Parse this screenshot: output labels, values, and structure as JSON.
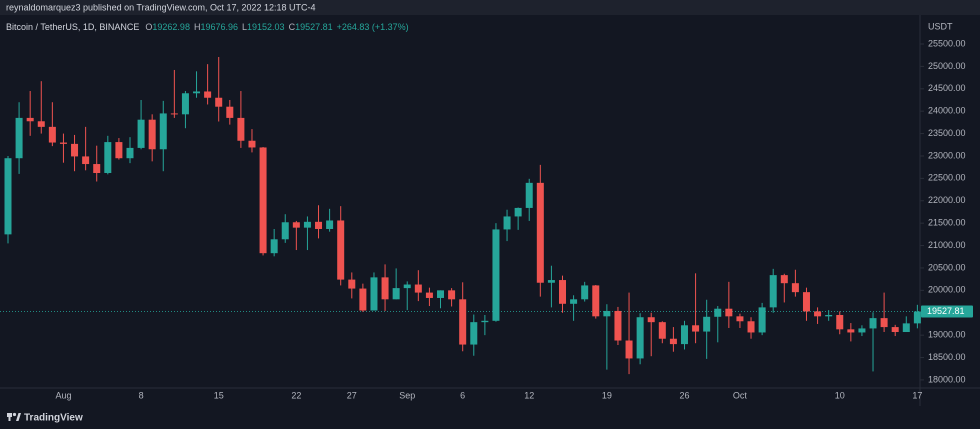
{
  "chart_data": {
    "type": "candlestick",
    "published": "reynaldomarquez3 published on TradingView.com, Oct 17, 2022 12:18 UTC-4",
    "subtitle": "Bitcoin / TetherUS, 1D, BINANCE",
    "ohlc_legend": [
      {
        "label": "O",
        "value": "19262.98"
      },
      {
        "label": "H",
        "value": "19676.96"
      },
      {
        "label": "L",
        "value": "19152.03"
      },
      {
        "label": "C",
        "value": "19527.81"
      }
    ],
    "change": "+264.83 (+1.37%)",
    "y_axis_unit": "USDT",
    "brand": "TradingView",
    "up_color": "#26a69a",
    "down_color": "#ef5350",
    "last_price": 19527.81,
    "categories": [
      null,
      null,
      null,
      null,
      null,
      "Aug",
      null,
      null,
      null,
      null,
      null,
      null,
      "8",
      null,
      null,
      null,
      null,
      null,
      null,
      "15",
      null,
      null,
      null,
      null,
      null,
      null,
      "22",
      null,
      null,
      null,
      null,
      "27",
      null,
      null,
      null,
      null,
      "Sep",
      null,
      null,
      null,
      null,
      "6",
      null,
      null,
      null,
      null,
      null,
      "12",
      null,
      null,
      null,
      null,
      null,
      null,
      "19",
      null,
      null,
      null,
      null,
      null,
      null,
      "26",
      null,
      null,
      null,
      null,
      "Oct",
      null,
      null,
      null,
      null,
      null,
      null,
      null,
      null,
      "10",
      null,
      null,
      null,
      null,
      null,
      null,
      "17"
    ],
    "open": [
      21250,
      22950,
      23850,
      23775,
      23650,
      23300,
      23270,
      22990,
      22820,
      22620,
      23310,
      22950,
      23180,
      23810,
      23150,
      23950,
      23930,
      24400,
      24440,
      24300,
      24100,
      23850,
      23340,
      23190,
      20830,
      21140,
      21520,
      21400,
      21530,
      21370,
      21560,
      20240,
      20040,
      19550,
      20290,
      19800,
      20050,
      20130,
      19950,
      19830,
      20000,
      19800,
      18790,
      19290,
      19320,
      21360,
      21650,
      21840,
      22400,
      20170,
      20230,
      19700,
      19800,
      20110,
      19420,
      19540,
      18880,
      18480,
      19400,
      19290,
      18920,
      18800,
      19220,
      19080,
      19410,
      19590,
      19420,
      19310,
      19060,
      19620,
      20340,
      20160,
      19960,
      19530,
      19420,
      19450,
      19130,
      19060,
      19150,
      19380,
      19180,
      19070,
      19262.98
    ],
    "high": [
      23000,
      24200,
      24450,
      24670,
      24200,
      23500,
      23470,
      23650,
      23230,
      23450,
      23400,
      23420,
      24250,
      23930,
      24230,
      24920,
      24450,
      24890,
      25050,
      25210,
      24250,
      24450,
      23600,
      23200,
      21370,
      21700,
      21550,
      21650,
      21900,
      21820,
      21880,
      20400,
      20150,
      20400,
      20580,
      20490,
      20200,
      20450,
      20060,
      20000,
      20050,
      20180,
      19460,
      19450,
      21500,
      21800,
      21850,
      22490,
      22800,
      20550,
      20330,
      19890,
      20190,
      20120,
      19690,
      19630,
      19950,
      19490,
      19500,
      19310,
      19180,
      19320,
      20380,
      19790,
      19650,
      20190,
      19480,
      19400,
      19720,
      20480,
      20370,
      20460,
      20060,
      19620,
      19560,
      19530,
      19270,
      19220,
      19510,
      19950,
      19230,
      19420,
      19676.96
    ],
    "low": [
      21050,
      22600,
      23450,
      23500,
      23220,
      22850,
      22660,
      22680,
      22430,
      22590,
      22920,
      22840,
      23150,
      22880,
      22660,
      23850,
      23620,
      24300,
      24150,
      23770,
      23700,
      23180,
      23080,
      20780,
      20760,
      21060,
      20900,
      20900,
      21160,
      21310,
      20110,
      19820,
      19520,
      19550,
      19540,
      19800,
      19560,
      19760,
      19650,
      19600,
      19640,
      18640,
      18540,
      19000,
      19300,
      21100,
      21350,
      21550,
      19860,
      19620,
      19500,
      19320,
      19750,
      19370,
      18230,
      18780,
      18130,
      18350,
      18530,
      18820,
      18630,
      18680,
      18820,
      18470,
      18840,
      19160,
      19160,
      18920,
      19000,
      19500,
      19730,
      19860,
      19320,
      19250,
      19320,
      19020,
      18860,
      18980,
      18190,
      19070,
      18980,
      19070,
      19152.03
    ],
    "close": [
      22950,
      23850,
      23775,
      23650,
      23300,
      23270,
      22990,
      22820,
      22620,
      23310,
      22950,
      23180,
      23810,
      23150,
      23950,
      23930,
      24400,
      24440,
      24300,
      24100,
      23850,
      23340,
      23190,
      20830,
      21140,
      21520,
      21400,
      21530,
      21370,
      21560,
      20240,
      20040,
      19550,
      20290,
      19800,
      20050,
      20130,
      19950,
      19830,
      20000,
      19800,
      18790,
      19290,
      19320,
      21360,
      21650,
      21840,
      22400,
      20170,
      20230,
      19700,
      19800,
      20110,
      19420,
      19540,
      18880,
      18480,
      19400,
      19290,
      18920,
      18800,
      19220,
      19080,
      19410,
      19590,
      19420,
      19310,
      19060,
      19620,
      20340,
      20160,
      19960,
      19530,
      19420,
      19450,
      19130,
      19060,
      19150,
      19380,
      19180,
      19070,
      19262.98,
      19527.81
    ],
    "ylim": [
      17820,
      26125
    ],
    "yticks": [
      {
        "value": 25500,
        "label": "25500.00"
      },
      {
        "value": 25000,
        "label": "25000.00"
      },
      {
        "value": 24500,
        "label": "24500.00"
      },
      {
        "value": 24000,
        "label": "24000.00"
      },
      {
        "value": 23500,
        "label": "23500.00"
      },
      {
        "value": 23000,
        "label": "23000.00"
      },
      {
        "value": 22500,
        "label": "22500.00"
      },
      {
        "value": 22000,
        "label": "22000.00"
      },
      {
        "value": 21500,
        "label": "21500.00"
      },
      {
        "value": 21000,
        "label": "21000.00"
      },
      {
        "value": 20500,
        "label": "20500.00"
      },
      {
        "value": 20000,
        "label": "20000.00"
      },
      {
        "value": 19500,
        "label": "19500.00"
      },
      {
        "value": 19000,
        "label": "19000.00"
      },
      {
        "value": 18500,
        "label": "18500.00"
      },
      {
        "value": 18000,
        "label": "18000.00"
      }
    ]
  }
}
